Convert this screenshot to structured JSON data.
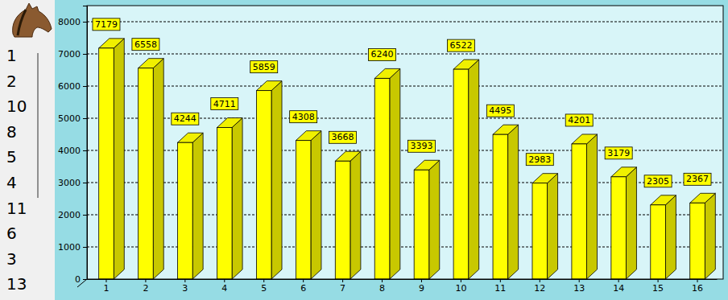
{
  "chart_data": {
    "type": "bar",
    "categories": [
      "1",
      "2",
      "3",
      "4",
      "5",
      "6",
      "7",
      "8",
      "9",
      "10",
      "11",
      "12",
      "13",
      "14",
      "15",
      "16"
    ],
    "values": [
      7179,
      6558,
      4244,
      4711,
      5859,
      4308,
      3668,
      6240,
      3393,
      6522,
      4495,
      2983,
      4201,
      3179,
      2305,
      2367
    ],
    "color": "#ffff00",
    "ylim": [
      0,
      8500
    ],
    "yticks": [
      0,
      1000,
      2000,
      3000,
      4000,
      5000,
      6000,
      7000,
      8000
    ],
    "grid": true,
    "data_labels": true
  },
  "sidebar": {
    "items": [
      1,
      2,
      10,
      8,
      5,
      4,
      11,
      6,
      3,
      13
    ]
  }
}
